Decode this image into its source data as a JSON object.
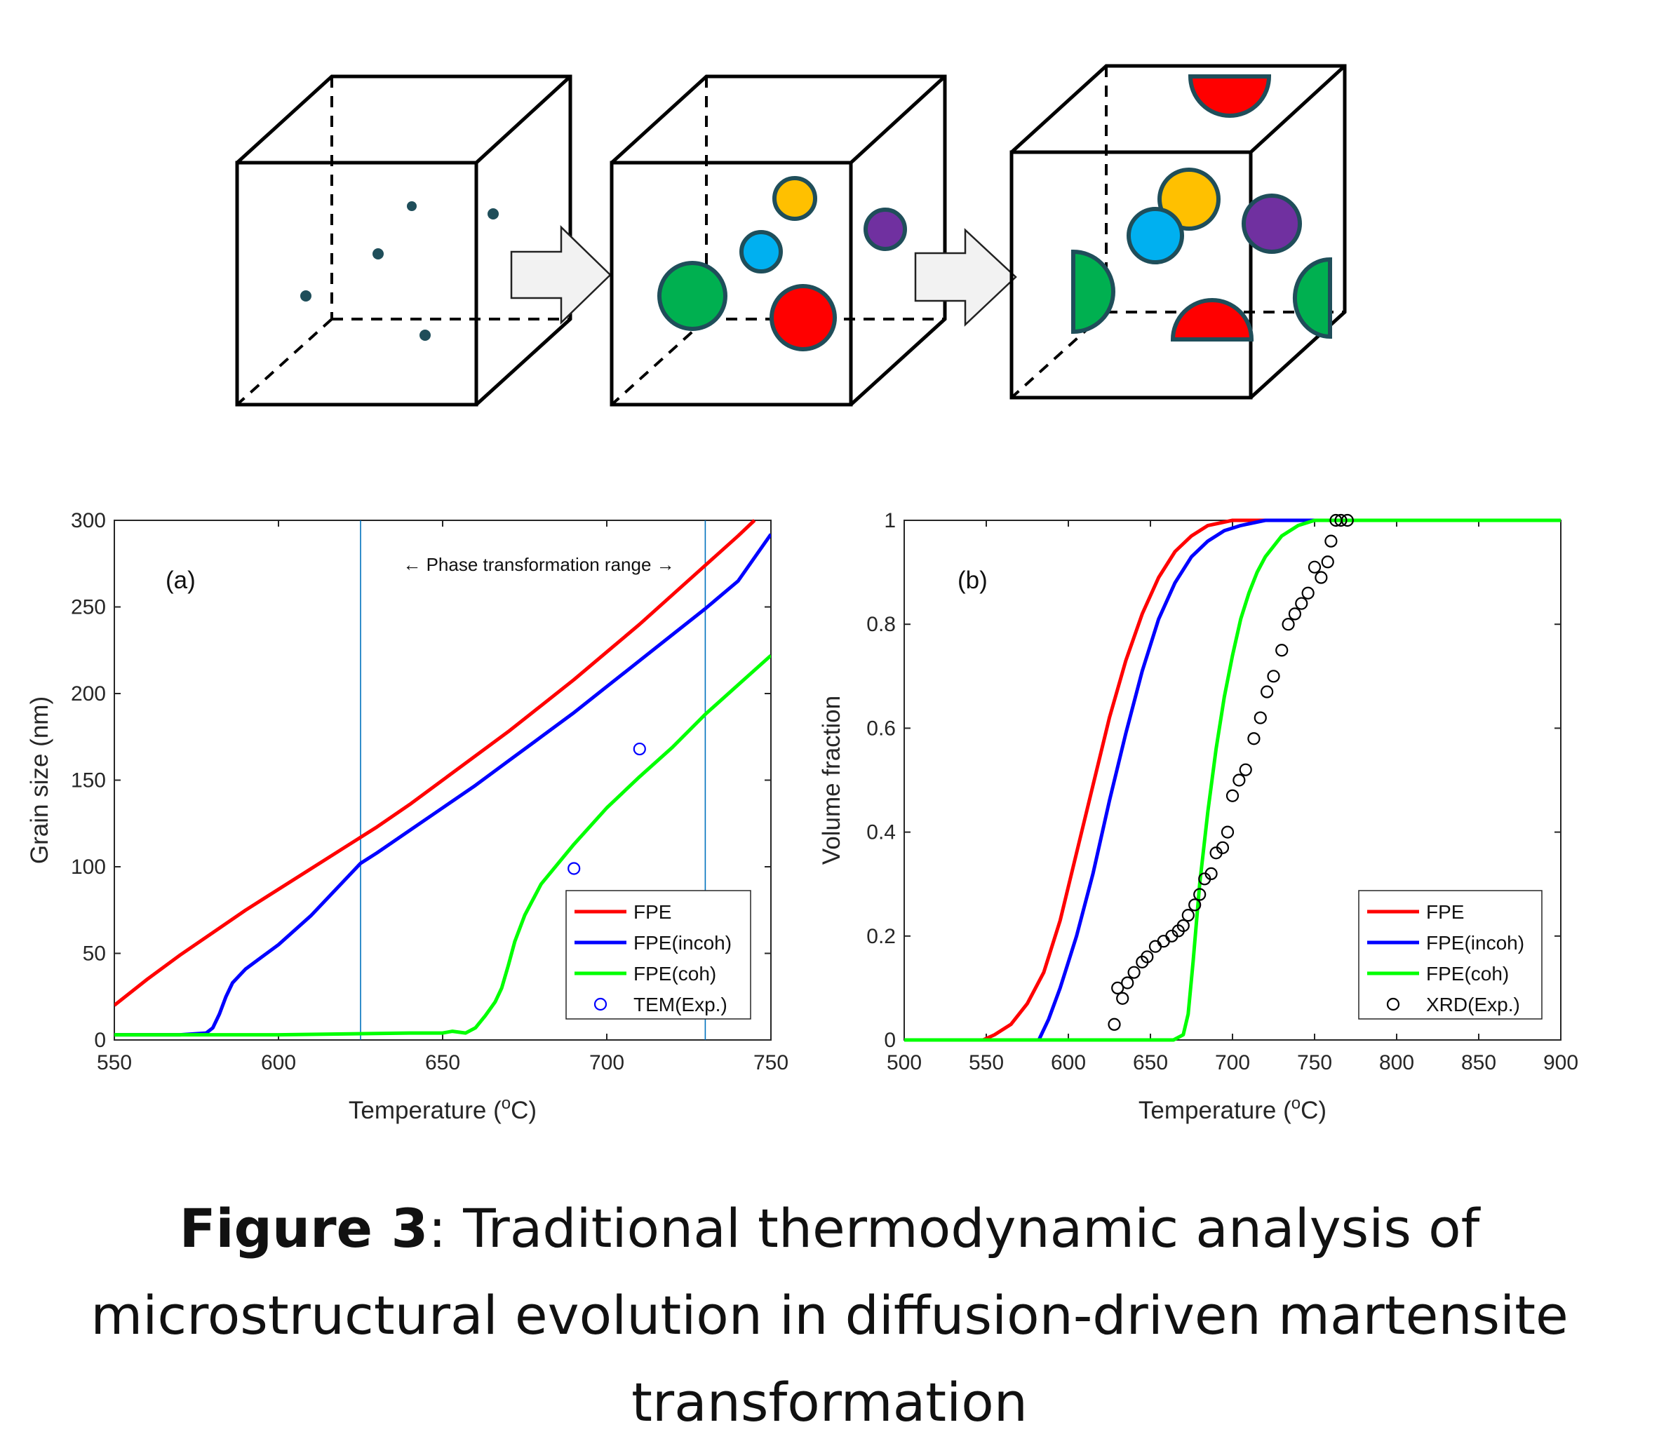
{
  "caption": {
    "label": "Figure 3",
    "text": ": Traditional thermodynamic analysis of microstructural evolution in diffusion-driven martensite transformation"
  },
  "schematic": {
    "colors": {
      "outline": "#1f4e5a",
      "green": "#00b050",
      "red": "#ff0000",
      "blue": "#00b0f0",
      "orange": "#ffc000",
      "purple": "#7030a0",
      "arrow_fill": "#f2f2f2"
    }
  },
  "chart_data": [
    {
      "type": "line",
      "panel_label": "(a)",
      "annotation": "← Phase transformation range →",
      "xlabel": "Temperature (",
      "xlabel_sup": "o",
      "xlabel_end": "C)",
      "ylabel": "Grain size (nm)",
      "xlim": [
        550,
        750
      ],
      "ylim": [
        0,
        300
      ],
      "xticks": [
        550,
        600,
        650,
        700,
        750
      ],
      "yticks": [
        0,
        50,
        100,
        150,
        200,
        250,
        300
      ],
      "vlines": [
        625,
        730
      ],
      "legend_position": "bottom-right",
      "series": [
        {
          "name": "FPE",
          "color": "#ff0000",
          "x": [
            550,
            560,
            570,
            580,
            590,
            600,
            610,
            620,
            625,
            630,
            640,
            650,
            660,
            670,
            680,
            690,
            700,
            710,
            720,
            730,
            740,
            745
          ],
          "y": [
            20,
            35,
            49,
            62,
            75,
            87,
            99,
            111,
            117,
            123,
            136,
            150,
            164,
            178,
            193,
            208,
            224,
            240,
            257,
            274,
            291,
            300
          ]
        },
        {
          "name": "FPE(incoh)",
          "color": "#0000ff",
          "x": [
            550,
            570,
            578,
            580,
            582,
            584,
            586,
            590,
            595,
            600,
            610,
            620,
            625,
            630,
            640,
            650,
            660,
            670,
            680,
            690,
            700,
            710,
            720,
            730,
            740,
            750
          ],
          "y": [
            3,
            3,
            4,
            7,
            15,
            25,
            33,
            41,
            48,
            55,
            72,
            92,
            102,
            108,
            121,
            134,
            147,
            161,
            175,
            189,
            204,
            219,
            234,
            249,
            265,
            292
          ]
        },
        {
          "name": "FPE(coh)",
          "color": "#00ff00",
          "x": [
            550,
            600,
            640,
            650,
            653,
            657,
            660,
            663,
            666,
            668,
            670,
            672,
            675,
            680,
            690,
            700,
            710,
            720,
            730,
            740,
            750
          ],
          "y": [
            3,
            3,
            4,
            4,
            5,
            4,
            7,
            14,
            22,
            30,
            43,
            57,
            72,
            90,
            113,
            134,
            152,
            169,
            188,
            205,
            222
          ]
        },
        {
          "name": "TEM(Exp.)",
          "color": "#0000ff",
          "marker": "circle",
          "x": [
            690,
            710
          ],
          "y": [
            99,
            168
          ]
        }
      ]
    },
    {
      "type": "line",
      "panel_label": "(b)",
      "xlabel": "Temperature (",
      "xlabel_sup": "o",
      "xlabel_end": "C)",
      "ylabel": "Volume fraction",
      "xlim": [
        500,
        900
      ],
      "ylim": [
        0,
        1
      ],
      "xticks": [
        500,
        550,
        600,
        650,
        700,
        750,
        800,
        850,
        900
      ],
      "ytick_labels": [
        "0",
        "0.2",
        "0.4",
        "0.6",
        "0.8",
        "1"
      ],
      "yticks": [
        0,
        0.2,
        0.4,
        0.6,
        0.8,
        1
      ],
      "legend_position": "bottom-right",
      "series": [
        {
          "name": "FPE",
          "color": "#ff0000",
          "x": [
            500,
            548,
            555,
            565,
            575,
            585,
            595,
            605,
            615,
            625,
            635,
            645,
            655,
            665,
            675,
            685,
            700,
            720,
            900
          ],
          "y": [
            0,
            0,
            0.01,
            0.03,
            0.07,
            0.13,
            0.23,
            0.36,
            0.49,
            0.62,
            0.73,
            0.82,
            0.89,
            0.94,
            0.97,
            0.99,
            1,
            1,
            1
          ]
        },
        {
          "name": "FPE(incoh)",
          "color": "#0000ff",
          "x": [
            500,
            582,
            588,
            595,
            605,
            615,
            625,
            635,
            645,
            655,
            665,
            675,
            685,
            695,
            705,
            720,
            740,
            900
          ],
          "y": [
            0,
            0,
            0.04,
            0.1,
            0.2,
            0.32,
            0.46,
            0.59,
            0.71,
            0.81,
            0.88,
            0.93,
            0.96,
            0.98,
            0.99,
            1,
            1,
            1
          ]
        },
        {
          "name": "FPE(coh)",
          "color": "#00ff00",
          "x": [
            500,
            664,
            670,
            673,
            676,
            680,
            685,
            690,
            695,
            700,
            705,
            710,
            715,
            720,
            730,
            740,
            750,
            760,
            780,
            900
          ],
          "y": [
            0,
            0,
            0.01,
            0.05,
            0.15,
            0.3,
            0.44,
            0.56,
            0.66,
            0.74,
            0.81,
            0.86,
            0.9,
            0.93,
            0.97,
            0.99,
            1,
            1,
            1,
            1
          ]
        },
        {
          "name": "XRD(Exp.)",
          "color": "#000000",
          "marker": "circle",
          "x": [
            628,
            630,
            633,
            636,
            640,
            645,
            648,
            653,
            658,
            663,
            667,
            670,
            673,
            677,
            680,
            683,
            687,
            690,
            694,
            697,
            700,
            704,
            708,
            713,
            717,
            721,
            725,
            730,
            734,
            738,
            742,
            746,
            750,
            754,
            758,
            760,
            763,
            766,
            770
          ],
          "y": [
            0.03,
            0.1,
            0.08,
            0.11,
            0.13,
            0.15,
            0.16,
            0.18,
            0.19,
            0.2,
            0.21,
            0.22,
            0.24,
            0.26,
            0.28,
            0.31,
            0.32,
            0.36,
            0.37,
            0.4,
            0.47,
            0.5,
            0.52,
            0.58,
            0.62,
            0.67,
            0.7,
            0.75,
            0.8,
            0.82,
            0.84,
            0.86,
            0.91,
            0.89,
            0.92,
            0.96,
            1,
            1,
            1
          ]
        }
      ]
    }
  ]
}
